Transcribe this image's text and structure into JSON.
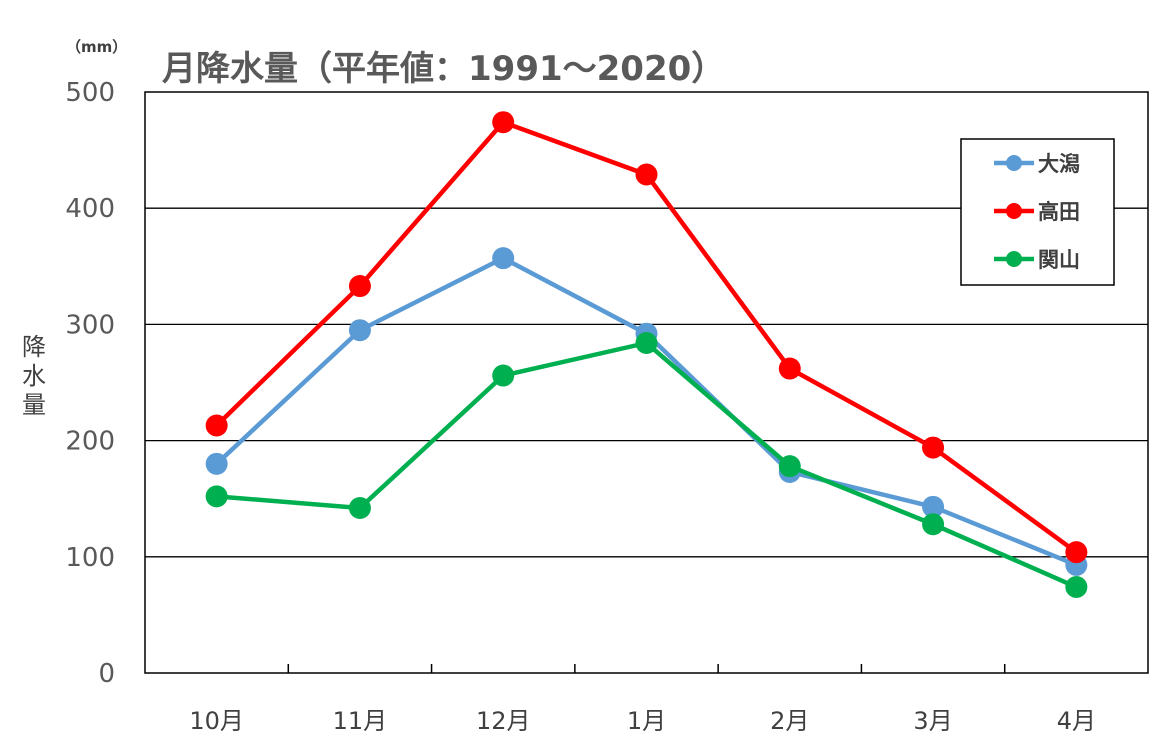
{
  "chart_data": {
    "type": "line",
    "title": "月降水量（平年値：1991～2020）",
    "unit": "（mm）",
    "ylabel": "降水量",
    "ylim": [
      0,
      500
    ],
    "yticks": [
      "0",
      "100",
      "200",
      "300",
      "400",
      "500"
    ],
    "grid": true,
    "legend_position": "top-right",
    "categories": [
      "10月",
      "11月",
      "12月",
      "1月",
      "2月",
      "3月",
      "4月"
    ],
    "series": [
      {
        "name": "大潟",
        "color": "#5b9bd5",
        "values": [
          180,
          295,
          357,
          292,
          173,
          143,
          93
        ]
      },
      {
        "name": "高田",
        "color": "#ff0000",
        "values": [
          213,
          333,
          474,
          429,
          262,
          194,
          104
        ]
      },
      {
        "name": "関山",
        "color": "#00b050",
        "values": [
          152,
          142,
          256,
          284,
          178,
          128,
          74
        ]
      }
    ]
  }
}
